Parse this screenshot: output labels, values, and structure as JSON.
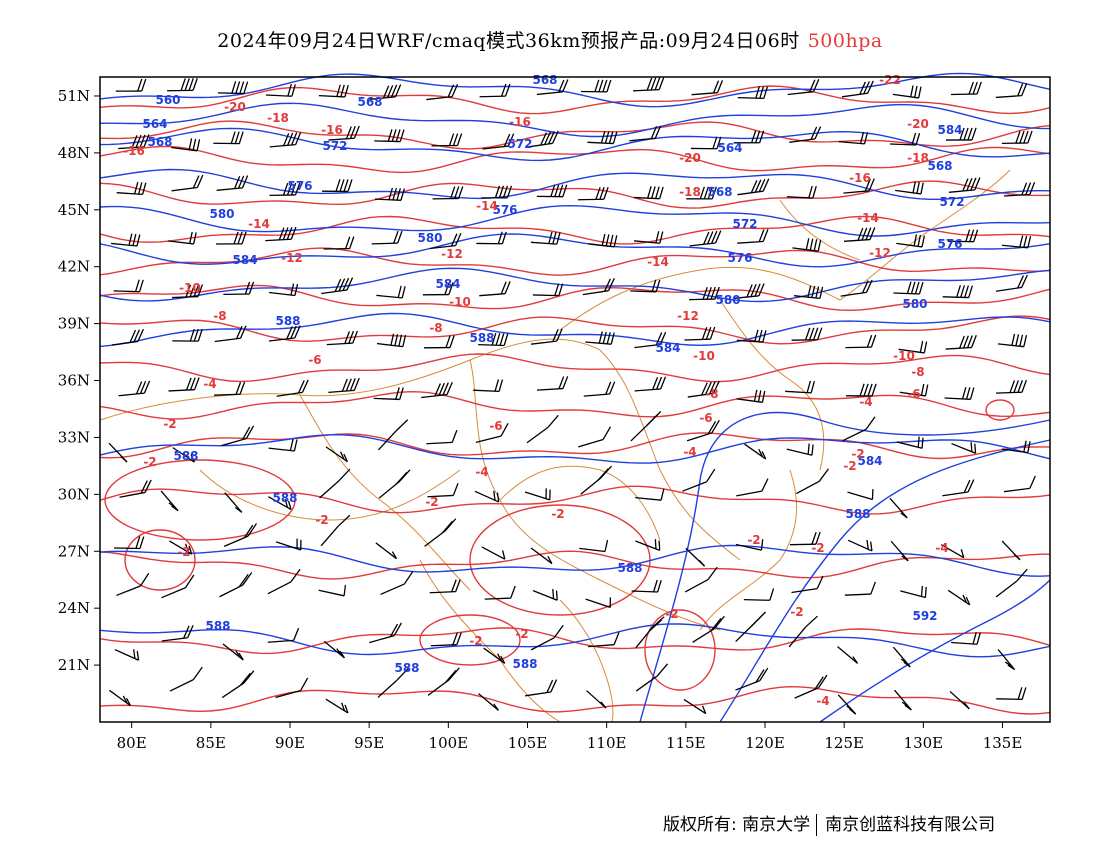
{
  "title": {
    "main": "2024年09月24日WRF/cmaq模式36km预报产品:09月24日06时",
    "level": "500hpa",
    "level_color": "#e23a3a"
  },
  "colors": {
    "geopotential": "#1f3fe0",
    "temperature": "#e23a3a",
    "boundaries": "#d98b3a",
    "barbs": "#000000"
  },
  "map_data": {
    "lon_range": [
      78,
      138
    ],
    "lat_range": [
      18,
      52
    ],
    "lon_ticks": [
      "80E",
      "85E",
      "90E",
      "95E",
      "100E",
      "105E",
      "110E",
      "115E",
      "120E",
      "125E",
      "130E",
      "135E"
    ],
    "lat_ticks": [
      "51N",
      "48N",
      "45N",
      "42N",
      "39N",
      "36N",
      "33N",
      "30N",
      "27N",
      "24N",
      "21N"
    ],
    "geopotential_labels": [
      "560",
      "564",
      "568",
      "572",
      "576",
      "580",
      "584",
      "588",
      "592"
    ],
    "temperature_labels": [
      "-22",
      "-20",
      "-18",
      "-16",
      "-14",
      "-12",
      "-10",
      "-8",
      "-6",
      "-4",
      "-2"
    ]
  },
  "footer": {
    "owner": "版权所有: 南京大学",
    "company": "南京创蓝科技有限公司"
  }
}
